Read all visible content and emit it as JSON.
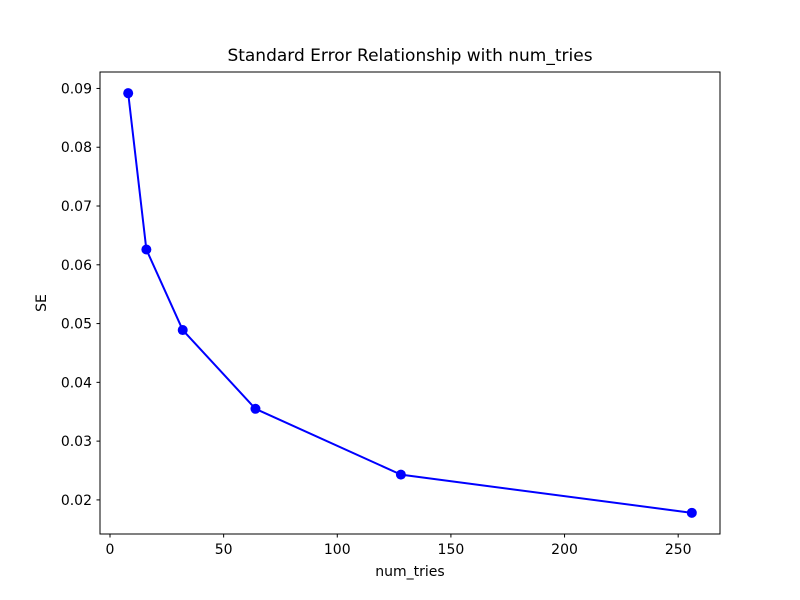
{
  "chart_data": {
    "type": "line",
    "title": "Standard Error Relationship with num_tries",
    "xlabel": "num_tries",
    "ylabel": "SE",
    "x": [
      8,
      16,
      32,
      64,
      128,
      256
    ],
    "y": [
      0.0892,
      0.0626,
      0.0489,
      0.0355,
      0.0243,
      0.0178
    ],
    "xlim": [
      -4.4,
      268.4
    ],
    "ylim": [
      0.0142,
      0.0928
    ],
    "xticks": [
      0,
      50,
      100,
      150,
      200,
      250
    ],
    "xtick_labels": [
      "0",
      "50",
      "100",
      "150",
      "200",
      "250"
    ],
    "yticks": [
      0.02,
      0.03,
      0.04,
      0.05,
      0.06,
      0.07,
      0.08,
      0.09
    ],
    "ytick_labels": [
      "0.02",
      "0.03",
      "0.04",
      "0.05",
      "0.06",
      "0.07",
      "0.08",
      "0.09"
    ],
    "line_color": "#0000ff",
    "marker": "o",
    "grid": false,
    "legend": "none",
    "background_color": "#ffffff",
    "spine_color": "#000000"
  }
}
